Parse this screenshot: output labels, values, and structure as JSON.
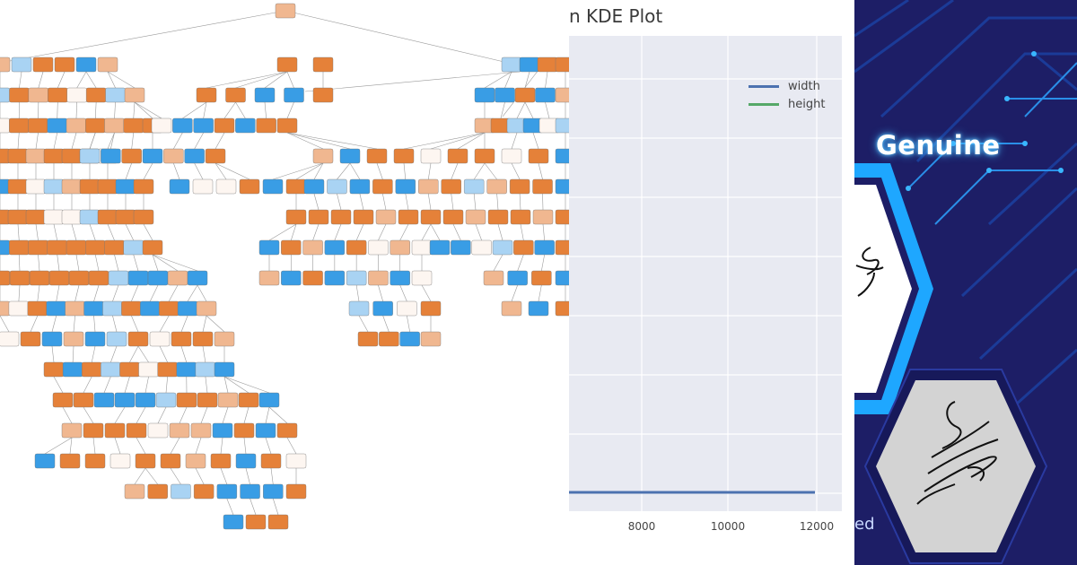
{
  "tree": {
    "node_colors": {
      "orange": "#e58139",
      "orange_light": "#f0b790",
      "blue": "#399de5",
      "blue_light": "#a9d3f3",
      "white": "#fdf6f1"
    }
  },
  "kde": {
    "title": "n KDE Plot",
    "legend": [
      {
        "label": "width",
        "color": "#4c72b0"
      },
      {
        "label": "height",
        "color": "#55a868"
      }
    ],
    "x_ticks": [
      "8000",
      "10000",
      "12000"
    ]
  },
  "signature": {
    "genuine_label": "Genuine",
    "forged_partial_label": "ed",
    "accent": "#1ea7ff",
    "background": "#1d1e66"
  }
}
